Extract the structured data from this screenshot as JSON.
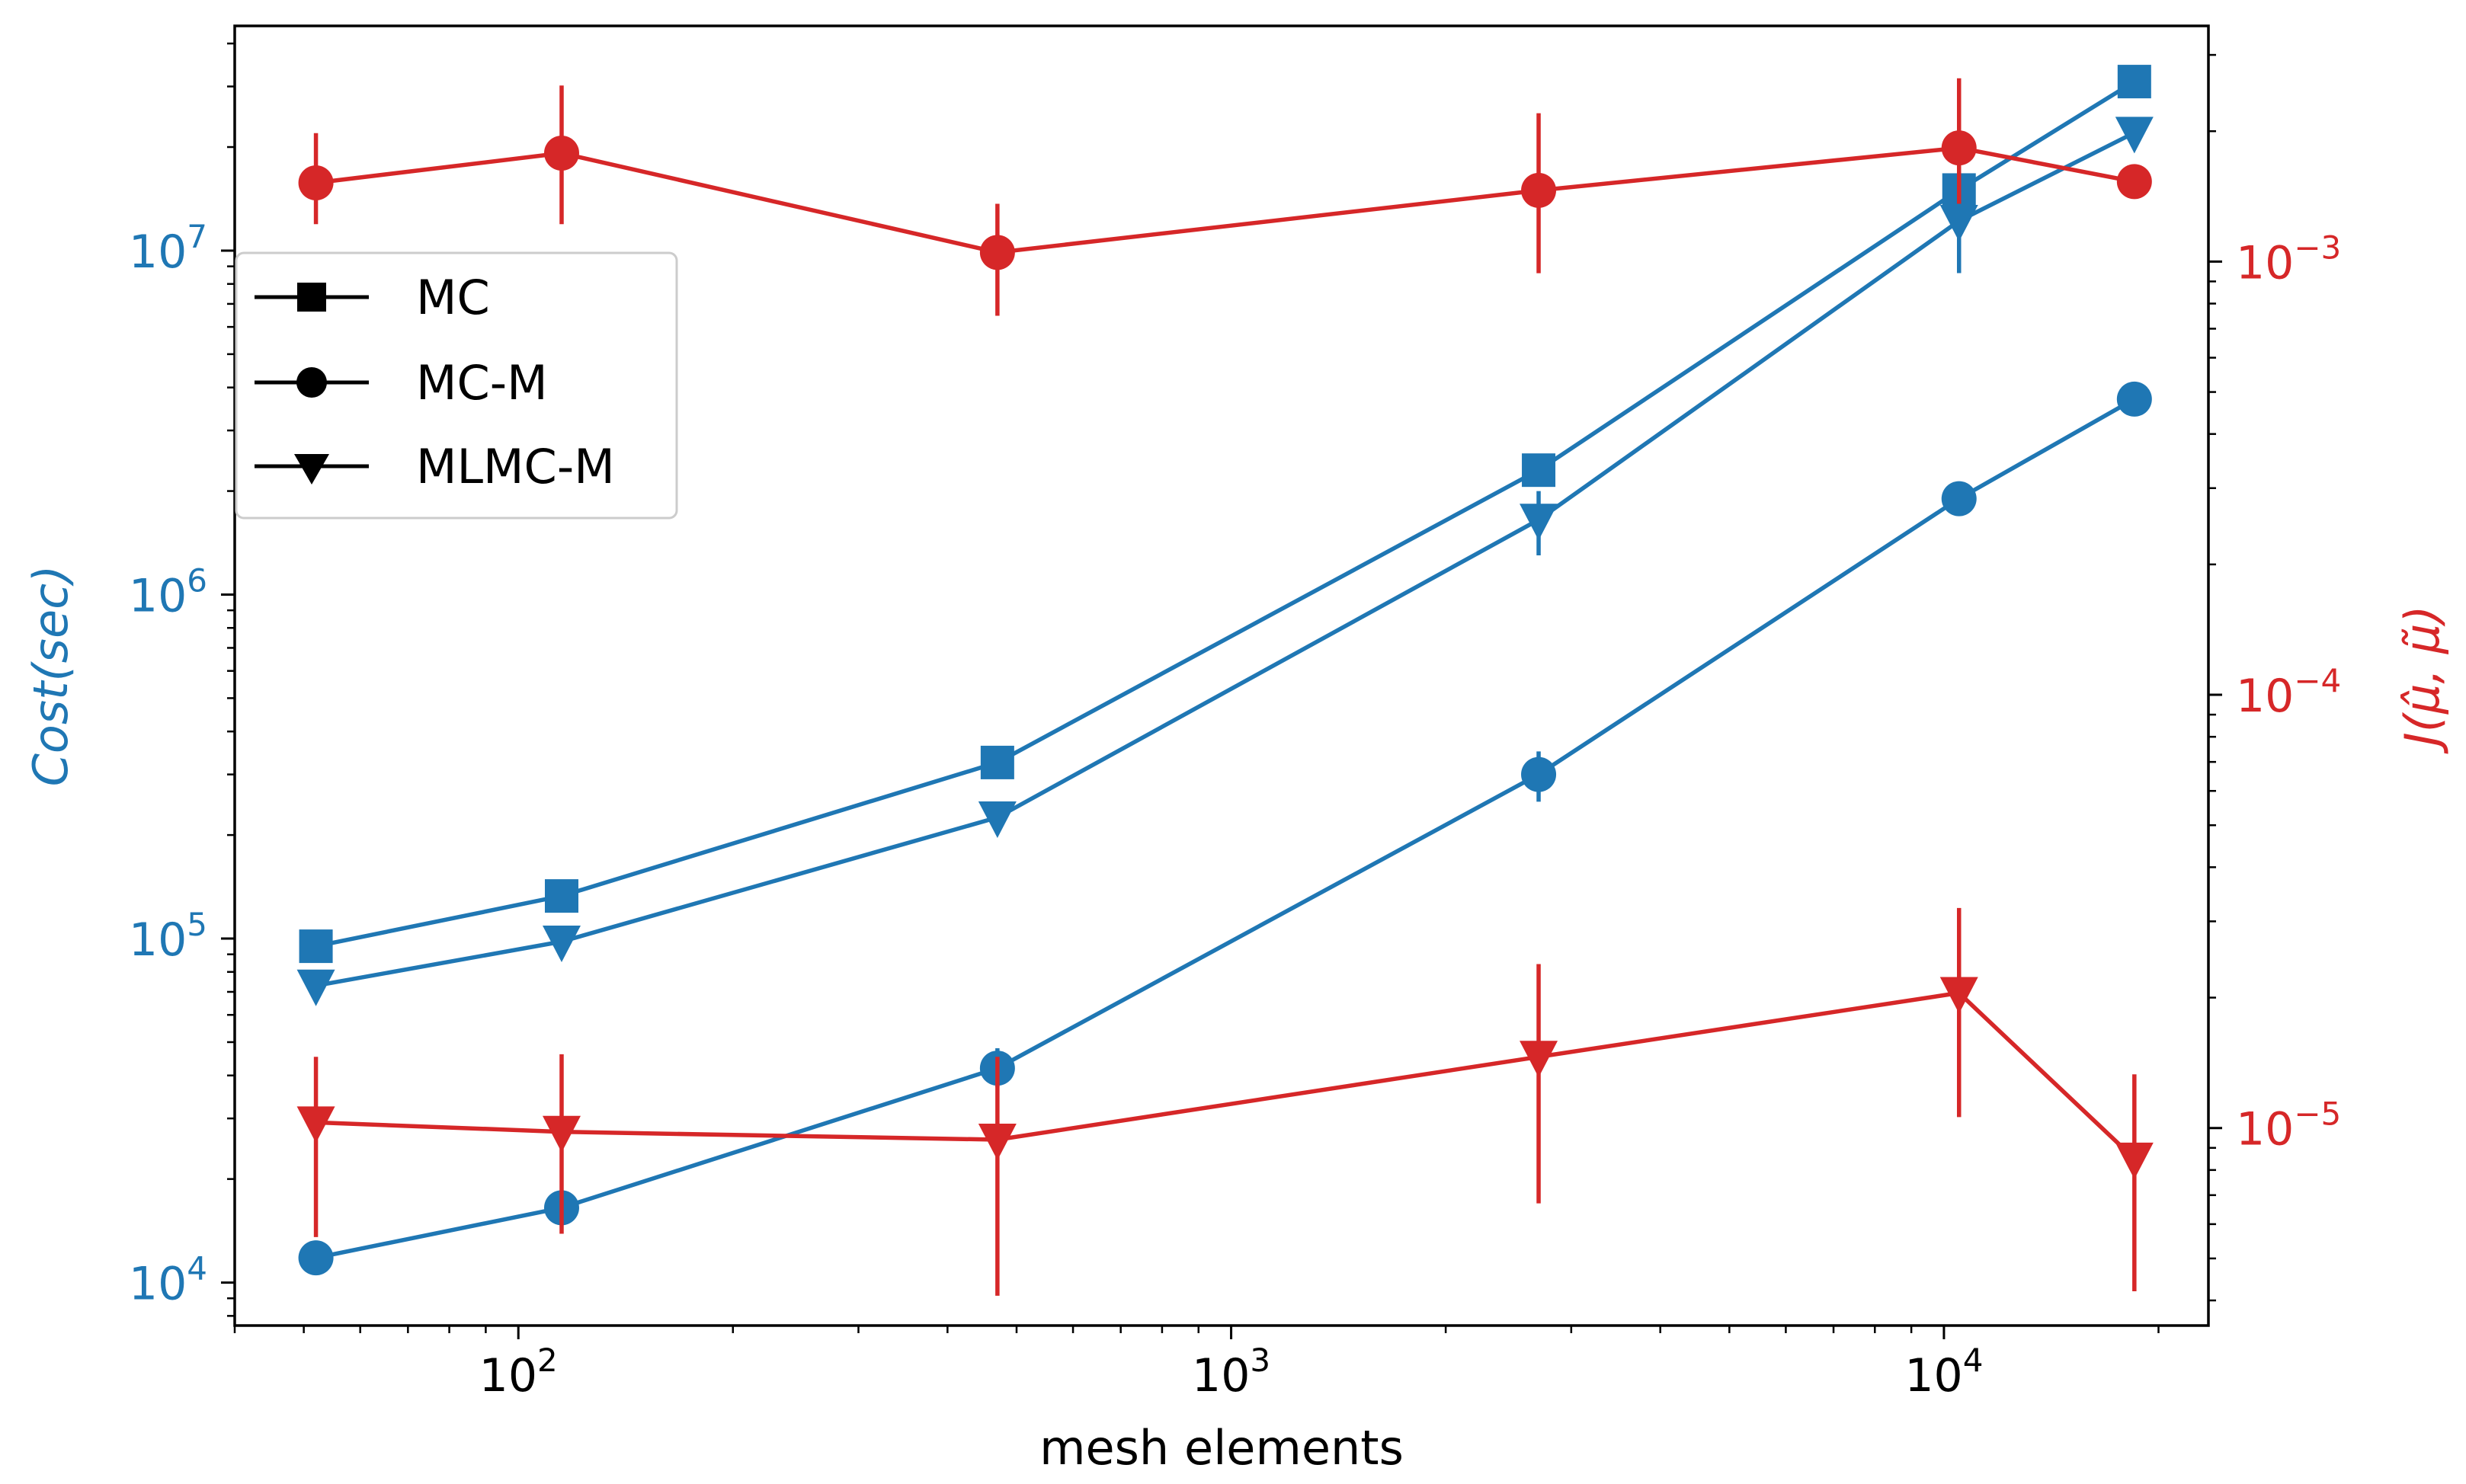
{
  "chart_data": {
    "type": "line",
    "xlabel": "mesh elements",
    "ylabel_left": "Cost(sec)",
    "ylabel_right_base": "J(",
    "ylabel_right_mu_hat": "μ̂",
    "ylabel_right_sep": ", ",
    "ylabel_right_mu_tilde": "μ̃",
    "ylabel_right_close": ")",
    "x_scale": "log",
    "xlim": [
      40,
      23500
    ],
    "ylim_left": [
      7500,
      45000000
    ],
    "ylim_right": [
      3.5e-06,
      0.0035
    ],
    "left_axis_color": "#1f77b4",
    "right_axis_color": "#d62728",
    "x_ticks": [
      {
        "value": 100,
        "base": "10",
        "exp": "2"
      },
      {
        "value": 1000,
        "base": "10",
        "exp": "3"
      },
      {
        "value": 10000,
        "base": "10",
        "exp": "4"
      }
    ],
    "y_left_ticks": [
      {
        "value": 10000,
        "base": "10",
        "exp": "4"
      },
      {
        "value": 100000,
        "base": "10",
        "exp": "5"
      },
      {
        "value": 1000000,
        "base": "10",
        "exp": "6"
      },
      {
        "value": 10000000,
        "base": "10",
        "exp": "7"
      }
    ],
    "y_right_ticks": [
      {
        "value": 1e-05,
        "base": "10",
        "exp": "−5"
      },
      {
        "value": 0.0001,
        "base": "10",
        "exp": "−4"
      },
      {
        "value": 0.001,
        "base": "10",
        "exp": "−3"
      }
    ],
    "x": [
      52,
      115,
      470,
      2700,
      10500,
      18500
    ],
    "series": [
      {
        "name": "MC",
        "axis": "left",
        "color": "#1f77b4",
        "marker": "square",
        "values": [
          95000,
          133000,
          325000,
          2300000,
          15000000,
          31000000
        ],
        "err_low": [
          null,
          null,
          null,
          null,
          null,
          null
        ],
        "err_high": [
          null,
          null,
          null,
          null,
          null,
          null
        ]
      },
      {
        "name": "MLMC-M",
        "axis": "left",
        "color": "#1f77b4",
        "marker": "triangle-down",
        "values": [
          73000,
          98000,
          225000,
          1650000,
          12200000,
          22000000
        ],
        "err_low": [
          null,
          null,
          205000,
          1300000,
          8600000,
          null
        ],
        "err_high": [
          null,
          null,
          245000,
          2000000,
          15500000,
          null
        ]
      },
      {
        "name": "MC-M",
        "axis": "left",
        "color": "#1f77b4",
        "marker": "circle",
        "values": [
          11800,
          16500,
          42000,
          300000,
          1900000,
          3700000
        ],
        "err_low": [
          null,
          null,
          37000,
          250000,
          null,
          null
        ],
        "err_high": [
          null,
          null,
          48000,
          350000,
          null,
          null
        ]
      },
      {
        "name": "MC-M",
        "axis": "right",
        "color": "#d62728",
        "marker": "circle",
        "values": [
          0.00152,
          0.00178,
          0.00105,
          0.00146,
          0.00183,
          0.00153
        ],
        "err_low": [
          0.00122,
          0.00122,
          0.00075,
          0.00094,
          0.00136,
          null
        ],
        "err_high": [
          0.00198,
          0.00255,
          0.00136,
          0.0022,
          0.00265,
          null
        ]
      },
      {
        "name": "MLMC-M",
        "axis": "right",
        "color": "#d62728",
        "marker": "triangle-down",
        "values": [
          1.03e-05,
          9.8e-06,
          9.4e-06,
          1.46e-05,
          2.05e-05,
          8.5e-06
        ],
        "err_low": [
          5.6e-06,
          5.7e-06,
          4.1e-06,
          6.7e-06,
          1.06e-05,
          4.2e-06
        ],
        "err_high": [
          1.46e-05,
          1.48e-05,
          1.46e-05,
          2.39e-05,
          3.22e-05,
          1.33e-05
        ]
      }
    ],
    "legend": {
      "position": "upper-left",
      "entries": [
        {
          "label": "MC",
          "marker": "square"
        },
        {
          "label": "MC-M",
          "marker": "circle"
        },
        {
          "label": "MLMC-M",
          "marker": "triangle-down"
        }
      ]
    }
  }
}
